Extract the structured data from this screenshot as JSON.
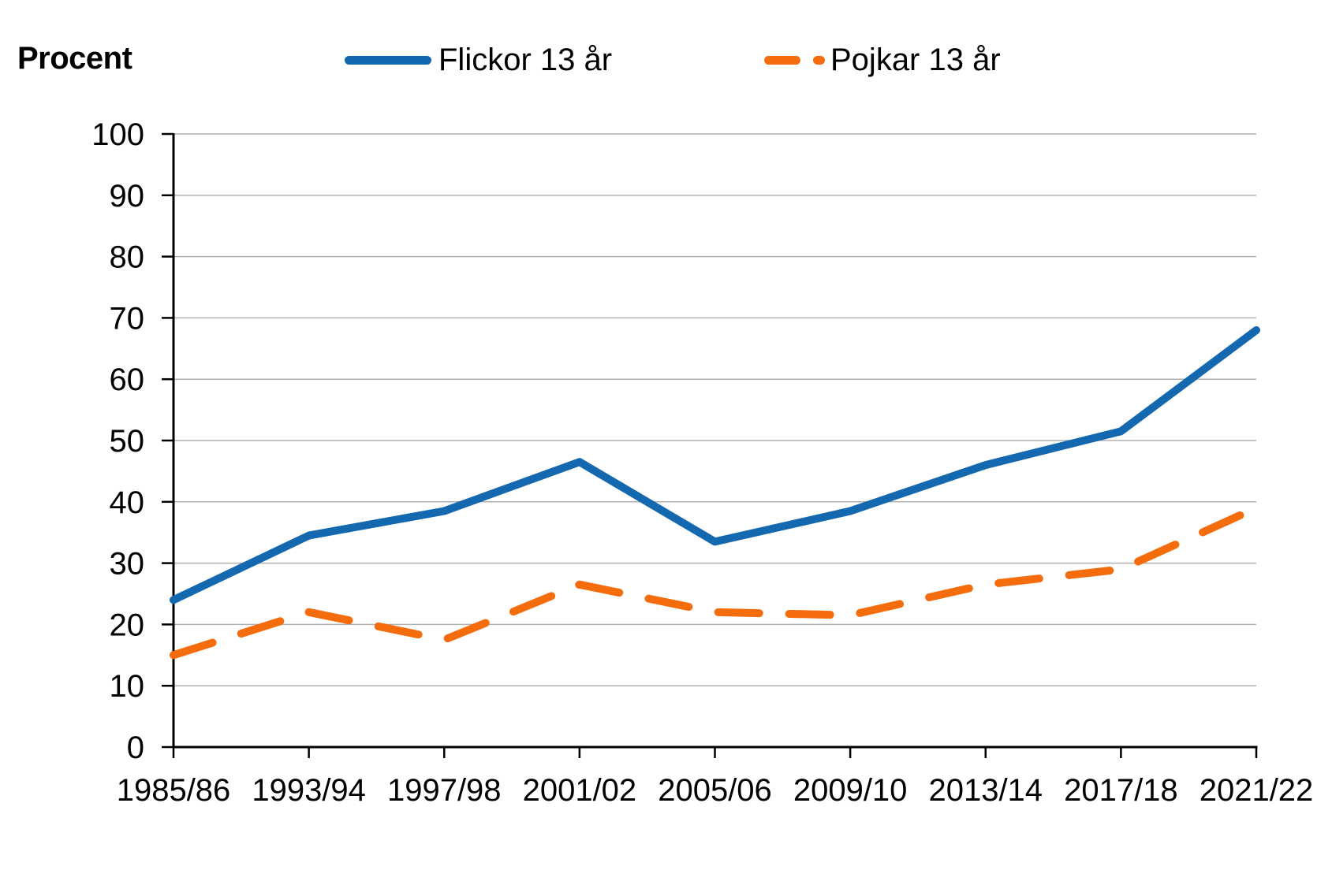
{
  "chart_data": {
    "type": "line",
    "title": "Procent",
    "categories": [
      "1985/86",
      "1993/94",
      "1997/98",
      "2001/02",
      "2005/06",
      "2009/10",
      "2013/14",
      "2017/18",
      "2021/22"
    ],
    "series": [
      {
        "name": "Flickor 13 år",
        "color": "#1368B0",
        "style": "solid",
        "values": [
          24,
          34.5,
          38.5,
          46.5,
          33.5,
          38.5,
          46,
          51.5,
          68
        ]
      },
      {
        "name": "Pojkar 13 år",
        "color": "#F56C0D",
        "style": "dashed",
        "values": [
          15,
          22,
          17.5,
          26.5,
          22,
          21.5,
          26.5,
          29,
          39
        ]
      }
    ],
    "y_axis": {
      "min": 0,
      "max": 100,
      "step": 10,
      "tick_labels": [
        "0",
        "10",
        "20",
        "30",
        "40",
        "50",
        "60",
        "70",
        "80",
        "90",
        "100"
      ]
    },
    "grid": "horizontal",
    "legend_position": "top",
    "axis_color": "#000000",
    "gridline_color": "#B0B0B0"
  }
}
